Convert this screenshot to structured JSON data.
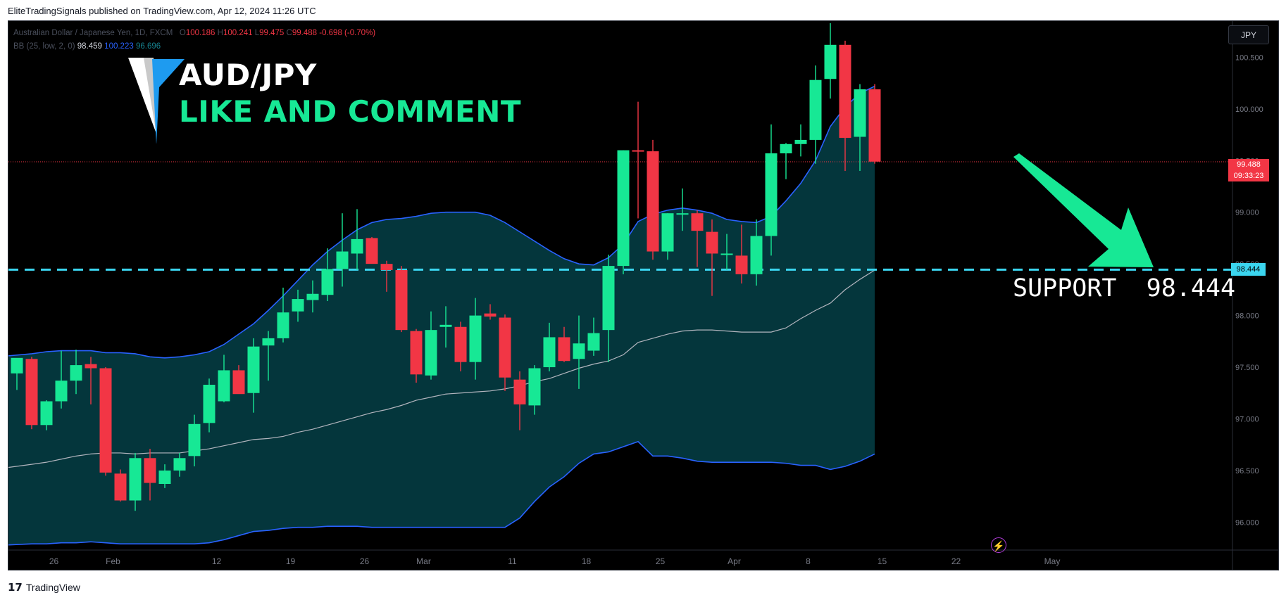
{
  "header": {
    "caption": "EliteTradingSignals published on TradingView.com, Apr 12, 2024 11:26 UTC"
  },
  "legend": {
    "symbol": "Australian Dollar / Japanese Yen, 1D, FXCM",
    "open_prefix": "O",
    "open": "100.186",
    "high_prefix": "H",
    "high": "100.241",
    "low_prefix": "L",
    "low": "99.475",
    "close_prefix": "C",
    "close": "99.488",
    "change": "-0.698 (-0.70%)",
    "indicator": "BB (25, low, 2, 0)",
    "bb_basis": "98.459",
    "bb_upper": "100.223",
    "bb_lower": "96.696"
  },
  "overlay": {
    "headline": "AUD/JPY",
    "subline": "LIKE AND COMMENT",
    "support_text": "SUPPORT  98.444"
  },
  "axis": {
    "currency": "JPY"
  },
  "price_tags": {
    "last_price": "99.488",
    "countdown": "09:33:23",
    "support": "98.444"
  },
  "footer": {
    "brand": "TradingView",
    "brand_mark": "17"
  },
  "colors": {
    "up": "#17e895",
    "down": "#f23645",
    "band_fill": "#04363c",
    "band_line": "#2962ff",
    "basis": "#b2b5be",
    "support": "#3bd5ef",
    "arrow": "#17e895",
    "background": "#000000"
  },
  "chart_data": {
    "type": "candlestick",
    "title": "",
    "y_ticks": [
      96.0,
      96.5,
      97.0,
      97.5,
      98.0,
      98.5,
      99.0,
      99.5,
      100.0,
      100.5
    ],
    "y_tick_labels": [
      "96.000",
      "96.500",
      "97.000",
      "97.500",
      "98.000",
      "98.500",
      "99.000",
      "99.500",
      "100.000",
      "100.500"
    ],
    "ylim": [
      95.73,
      100.85
    ],
    "x_ticks": [
      {
        "label": "26",
        "slot": 2.5
      },
      {
        "label": "Feb",
        "slot": 6.5
      },
      {
        "label": "12",
        "slot": 13.5
      },
      {
        "label": "19",
        "slot": 18.5
      },
      {
        "label": "26",
        "slot": 23.5
      },
      {
        "label": "Mar",
        "slot": 27.5
      },
      {
        "label": "11",
        "slot": 33.5
      },
      {
        "label": "18",
        "slot": 38.5
      },
      {
        "label": "25",
        "slot": 43.5
      },
      {
        "label": "Apr",
        "slot": 48.5
      },
      {
        "label": "8",
        "slot": 53.5
      },
      {
        "label": "15",
        "slot": 58.5
      },
      {
        "label": "22",
        "slot": 63.5
      },
      {
        "label": "May",
        "slot": 70.0
      }
    ],
    "horizontal_lines": [
      {
        "name": "support",
        "value": 98.444,
        "style": "dashed"
      },
      {
        "name": "last_price",
        "value": 99.488,
        "style": "dotted"
      }
    ],
    "candles": [
      {
        "o": 97.44,
        "h": 97.57,
        "l": 97.28,
        "c": 97.59
      },
      {
        "o": 97.58,
        "h": 97.6,
        "l": 96.9,
        "c": 96.94
      },
      {
        "o": 96.94,
        "h": 97.18,
        "l": 96.89,
        "c": 97.17
      },
      {
        "o": 97.17,
        "h": 97.66,
        "l": 97.1,
        "c": 97.37
      },
      {
        "o": 97.37,
        "h": 97.67,
        "l": 97.24,
        "c": 97.52
      },
      {
        "o": 97.53,
        "h": 97.6,
        "l": 97.14,
        "c": 97.49
      },
      {
        "o": 97.49,
        "h": 97.5,
        "l": 96.45,
        "c": 96.48
      },
      {
        "o": 96.47,
        "h": 96.51,
        "l": 96.2,
        "c": 96.21
      },
      {
        "o": 96.21,
        "h": 96.67,
        "l": 96.11,
        "c": 96.62
      },
      {
        "o": 96.62,
        "h": 96.71,
        "l": 96.21,
        "c": 96.38
      },
      {
        "o": 96.37,
        "h": 96.56,
        "l": 96.33,
        "c": 96.5
      },
      {
        "o": 96.5,
        "h": 96.67,
        "l": 96.44,
        "c": 96.62
      },
      {
        "o": 96.64,
        "h": 97.04,
        "l": 96.54,
        "c": 96.95
      },
      {
        "o": 96.96,
        "h": 97.39,
        "l": 96.87,
        "c": 97.33
      },
      {
        "o": 97.17,
        "h": 97.62,
        "l": 97.16,
        "c": 97.47
      },
      {
        "o": 97.47,
        "h": 97.52,
        "l": 97.26,
        "c": 97.24
      },
      {
        "o": 97.25,
        "h": 97.78,
        "l": 97.06,
        "c": 97.7
      },
      {
        "o": 97.71,
        "h": 97.85,
        "l": 97.37,
        "c": 97.78
      },
      {
        "o": 97.78,
        "h": 98.27,
        "l": 97.74,
        "c": 98.03
      },
      {
        "o": 98.04,
        "h": 98.25,
        "l": 97.94,
        "c": 98.16
      },
      {
        "o": 98.15,
        "h": 98.34,
        "l": 98.03,
        "c": 98.21
      },
      {
        "o": 98.2,
        "h": 98.65,
        "l": 98.14,
        "c": 98.45
      },
      {
        "o": 98.45,
        "h": 98.99,
        "l": 98.28,
        "c": 98.62
      },
      {
        "o": 98.6,
        "h": 99.03,
        "l": 98.44,
        "c": 98.74
      },
      {
        "o": 98.75,
        "h": 98.76,
        "l": 98.55,
        "c": 98.5
      },
      {
        "o": 98.5,
        "h": 98.53,
        "l": 98.23,
        "c": 98.44
      },
      {
        "o": 98.44,
        "h": 98.48,
        "l": 97.84,
        "c": 97.86
      },
      {
        "o": 97.85,
        "h": 97.87,
        "l": 97.35,
        "c": 97.43
      },
      {
        "o": 97.42,
        "h": 98.04,
        "l": 97.38,
        "c": 97.86
      },
      {
        "o": 97.89,
        "h": 98.09,
        "l": 97.69,
        "c": 97.91
      },
      {
        "o": 97.89,
        "h": 97.94,
        "l": 97.46,
        "c": 97.55
      },
      {
        "o": 97.55,
        "h": 98.17,
        "l": 97.38,
        "c": 98.0
      },
      {
        "o": 98.02,
        "h": 98.11,
        "l": 97.96,
        "c": 97.99
      },
      {
        "o": 97.98,
        "h": 98.01,
        "l": 97.27,
        "c": 97.4
      },
      {
        "o": 97.38,
        "h": 97.46,
        "l": 96.89,
        "c": 97.14
      },
      {
        "o": 97.13,
        "h": 97.52,
        "l": 97.04,
        "c": 97.49
      },
      {
        "o": 97.5,
        "h": 97.93,
        "l": 97.46,
        "c": 97.79
      },
      {
        "o": 97.79,
        "h": 97.89,
        "l": 97.55,
        "c": 97.56
      },
      {
        "o": 97.58,
        "h": 98.0,
        "l": 97.29,
        "c": 97.73
      },
      {
        "o": 97.66,
        "h": 97.98,
        "l": 97.61,
        "c": 97.83
      },
      {
        "o": 97.86,
        "h": 98.59,
        "l": 97.55,
        "c": 98.48
      },
      {
        "o": 98.48,
        "h": 99.6,
        "l": 98.4,
        "c": 99.6
      },
      {
        "o": 99.6,
        "h": 100.07,
        "l": 98.94,
        "c": 99.59
      },
      {
        "o": 99.59,
        "h": 99.7,
        "l": 98.54,
        "c": 98.62
      },
      {
        "o": 98.62,
        "h": 98.99,
        "l": 98.54,
        "c": 98.99
      },
      {
        "o": 98.99,
        "h": 99.23,
        "l": 98.82,
        "c": 98.99
      },
      {
        "o": 98.99,
        "h": 99.02,
        "l": 98.47,
        "c": 98.82
      },
      {
        "o": 98.81,
        "h": 98.93,
        "l": 98.19,
        "c": 98.6
      },
      {
        "o": 98.6,
        "h": 98.79,
        "l": 98.44,
        "c": 98.6
      },
      {
        "o": 98.58,
        "h": 98.88,
        "l": 98.31,
        "c": 98.4
      },
      {
        "o": 98.4,
        "h": 98.93,
        "l": 98.29,
        "c": 98.77
      },
      {
        "o": 98.77,
        "h": 99.85,
        "l": 98.58,
        "c": 99.57
      },
      {
        "o": 99.57,
        "h": 99.67,
        "l": 99.32,
        "c": 99.66
      },
      {
        "o": 99.66,
        "h": 99.85,
        "l": 99.54,
        "c": 99.7
      },
      {
        "o": 99.7,
        "h": 100.42,
        "l": 99.47,
        "c": 100.28
      },
      {
        "o": 100.29,
        "h": 100.83,
        "l": 100.1,
        "c": 100.62
      },
      {
        "o": 100.62,
        "h": 100.66,
        "l": 99.4,
        "c": 99.72
      },
      {
        "o": 99.73,
        "h": 100.24,
        "l": 99.4,
        "c": 100.19
      },
      {
        "o": 100.19,
        "h": 100.24,
        "l": 99.47,
        "c": 99.49
      }
    ],
    "bollinger": {
      "upper": [
        97.61,
        97.63,
        97.65,
        97.66,
        97.66,
        97.66,
        97.64,
        97.64,
        97.63,
        97.6,
        97.59,
        97.6,
        97.62,
        97.65,
        97.72,
        97.82,
        97.92,
        98.05,
        98.19,
        98.34,
        98.49,
        98.62,
        98.73,
        98.83,
        98.9,
        98.93,
        98.94,
        98.96,
        98.99,
        99.0,
        99.0,
        99.0,
        98.97,
        98.9,
        98.81,
        98.72,
        98.63,
        98.55,
        98.5,
        98.49,
        98.56,
        98.69,
        98.91,
        98.98,
        99.02,
        99.04,
        99.02,
        98.99,
        98.93,
        98.91,
        98.9,
        98.96,
        99.11,
        99.28,
        99.5,
        99.83,
        100.02,
        100.15,
        100.22
      ],
      "basis": [
        96.53,
        96.56,
        96.58,
        96.61,
        96.64,
        96.66,
        96.67,
        96.67,
        96.66,
        96.67,
        96.67,
        96.67,
        96.69,
        96.71,
        96.74,
        96.77,
        96.8,
        96.81,
        96.83,
        96.87,
        96.9,
        96.94,
        96.98,
        97.02,
        97.06,
        97.09,
        97.13,
        97.18,
        97.21,
        97.24,
        97.25,
        97.26,
        97.27,
        97.29,
        97.32,
        97.36,
        97.39,
        97.44,
        97.49,
        97.53,
        97.56,
        97.62,
        97.74,
        97.78,
        97.82,
        97.85,
        97.86,
        97.86,
        97.85,
        97.84,
        97.84,
        97.84,
        97.88,
        97.97,
        98.05,
        98.12,
        98.25,
        98.35,
        98.44
      ],
      "lower": [
        95.78,
        95.79,
        95.79,
        95.8,
        95.8,
        95.81,
        95.8,
        95.79,
        95.79,
        95.79,
        95.79,
        95.79,
        95.79,
        95.8,
        95.83,
        95.87,
        95.91,
        95.92,
        95.94,
        95.95,
        95.95,
        95.96,
        95.96,
        95.96,
        95.95,
        95.95,
        95.95,
        95.95,
        95.95,
        95.95,
        95.95,
        95.95,
        95.95,
        95.95,
        96.04,
        96.2,
        96.34,
        96.44,
        96.57,
        96.66,
        96.68,
        96.73,
        96.78,
        96.64,
        96.64,
        96.62,
        96.59,
        96.58,
        96.58,
        96.58,
        96.58,
        96.58,
        96.57,
        96.55,
        96.55,
        96.51,
        96.54,
        96.59,
        96.66
      ]
    }
  }
}
